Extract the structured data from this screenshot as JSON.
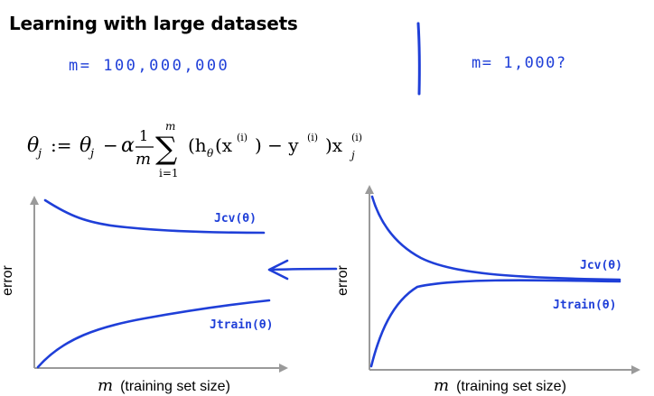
{
  "title": "Learning with large datasets",
  "notes": {
    "left": "m= 100,000,000",
    "right": "m= 1,000?"
  },
  "equation": {
    "latex": "\\theta_j := \\theta_j - \\alpha \\frac{1}{m} \\sum_{i=1}^{m} (h_\\theta(x^{(i)}) - y^{(i)}) x_j^{(i)}",
    "lhs": "θ",
    "lhs_sub": "j",
    "assign": ":=",
    "rhs_theta": "θ",
    "rhs_sub": "j",
    "minus": "−",
    "alpha": "α",
    "frac_num": "1",
    "frac_den": "m",
    "sum_top": "m",
    "sum_bottom": "i=1",
    "sum_symbol": "∑",
    "body": "(h",
    "body_sub": "θ",
    "body_x": "(x",
    "body_sup1": "(i)",
    "body_mid": ") − y",
    "body_sup2": "(i)",
    "body_end": ")x",
    "end_sup": "(i)",
    "end_sub": "j"
  },
  "plots": [
    {
      "ylabel": "error",
      "xlabel_var": "m",
      "xlabel_text": "(training set size)",
      "curves": [
        {
          "name": "Jcv(θ)",
          "label": "Jcv(θ)"
        },
        {
          "name": "Jtrain(θ)",
          "label": "Jtrain(θ)"
        }
      ]
    },
    {
      "ylabel": "error",
      "xlabel_var": "m",
      "xlabel_text": "(training set size)",
      "curves": [
        {
          "name": "Jcv(θ)",
          "label": "Jcv(θ)"
        },
        {
          "name": "Jtrain(θ)",
          "label": "Jtrain(θ)"
        }
      ]
    }
  ],
  "colors": {
    "ink": "#1f3fd8",
    "axis": "#9a9a9a",
    "text": "#000000"
  }
}
